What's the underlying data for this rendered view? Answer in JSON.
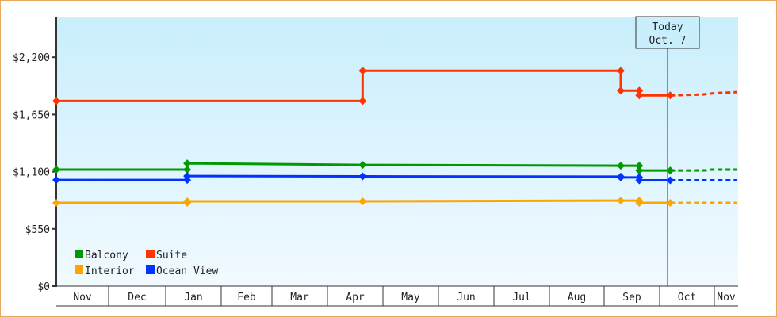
{
  "chart_data": {
    "type": "line",
    "title": "",
    "xlabel": "",
    "ylabel": "",
    "ylim": [
      0,
      2590
    ],
    "yticks": [
      0,
      550,
      1100,
      1650,
      2200
    ],
    "ytick_labels": [
      "$0",
      "$550",
      "$1,100",
      "$1,650",
      "$2,200"
    ],
    "x_tick_labels": [
      "Nov",
      "Dec",
      "Jan",
      "Feb",
      "Mar",
      "Apr",
      "May",
      "Jun",
      "Jul",
      "Aug",
      "Sep",
      "Oct",
      "Nov"
    ],
    "x_range": [
      "Nov 2",
      "Nov 13"
    ],
    "grid": false,
    "legend_position": "bottom-left",
    "today_marker": {
      "line1": "Today",
      "line2": "Oct. 7",
      "date": "Oct 7"
    },
    "series": [
      {
        "name": "Balcony",
        "color": "#009900",
        "points": [
          [
            "Nov 2",
            1120
          ],
          [
            "Jan 13",
            1120
          ],
          [
            "Jan 13",
            1180
          ],
          [
            "Apr 20",
            1165
          ],
          [
            "Sep 10",
            1157
          ],
          [
            "Sep 20",
            1157
          ],
          [
            "Sep 20",
            1111
          ],
          [
            "Oct 7",
            1111
          ]
        ],
        "forecast": [
          [
            "Oct 7",
            1111
          ],
          [
            "Oct 27",
            1112
          ],
          [
            "Oct 28",
            1120
          ],
          [
            "Nov 13",
            1120
          ]
        ]
      },
      {
        "name": "Suite",
        "color": "#ff3300",
        "points": [
          [
            "Nov 2",
            1780
          ],
          [
            "Apr 20",
            1780
          ],
          [
            "Apr 20",
            2070
          ],
          [
            "Sep 10",
            2070
          ],
          [
            "Sep 10",
            1880
          ],
          [
            "Sep 20",
            1880
          ],
          [
            "Sep 20",
            1834
          ],
          [
            "Oct 7",
            1834
          ]
        ],
        "forecast": [
          [
            "Oct 7",
            1834
          ],
          [
            "Oct 25",
            1842
          ],
          [
            "Nov 1",
            1855
          ],
          [
            "Nov 13",
            1865
          ]
        ]
      },
      {
        "name": "Interior",
        "color": "#ffa500",
        "points": [
          [
            "Nov 2",
            800
          ],
          [
            "Jan 13",
            800
          ],
          [
            "Jan 13",
            815
          ],
          [
            "Apr 20",
            815
          ],
          [
            "Sep 10",
            822
          ],
          [
            "Sep 20",
            822
          ],
          [
            "Sep 20",
            800
          ],
          [
            "Oct 7",
            800
          ]
        ],
        "forecast": [
          [
            "Oct 7",
            800
          ],
          [
            "Nov 13",
            800
          ]
        ]
      },
      {
        "name": "Ocean View",
        "color": "#0033ff",
        "points": [
          [
            "Nov 2",
            1020
          ],
          [
            "Jan 13",
            1020
          ],
          [
            "Jan 13",
            1058
          ],
          [
            "Apr 20",
            1055
          ],
          [
            "Sep 10",
            1052
          ],
          [
            "Sep 10",
            1045
          ],
          [
            "Sep 20",
            1045
          ],
          [
            "Sep 20",
            1017
          ],
          [
            "Oct 7",
            1017
          ]
        ],
        "forecast": [
          [
            "Oct 7",
            1017
          ],
          [
            "Nov 13",
            1017
          ]
        ]
      }
    ]
  }
}
